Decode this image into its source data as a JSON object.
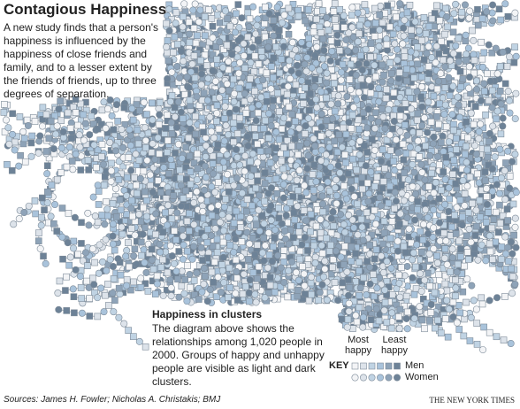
{
  "header": {
    "title": "Contagious Happiness",
    "intro": "A new study finds that a person's happiness is influenced by the happiness of close friends and family, and to a lesser extent by the friends of friends, up to three degrees of separation."
  },
  "note": {
    "heading": "Happiness in clusters",
    "body": "The diagram above shows the relationships among 1,020 people in 2000. Groups of happy and unhappy people are visible as light and dark clusters."
  },
  "key": {
    "most": "Most happy",
    "least": "Least happy",
    "label": "KEY",
    "men": "Men",
    "women": "Women"
  },
  "footer": {
    "source": "Sources: James H. Fowler; Nicholas A. Christakis; BMJ",
    "credit": "THE NEW YORK TIMES"
  }
}
